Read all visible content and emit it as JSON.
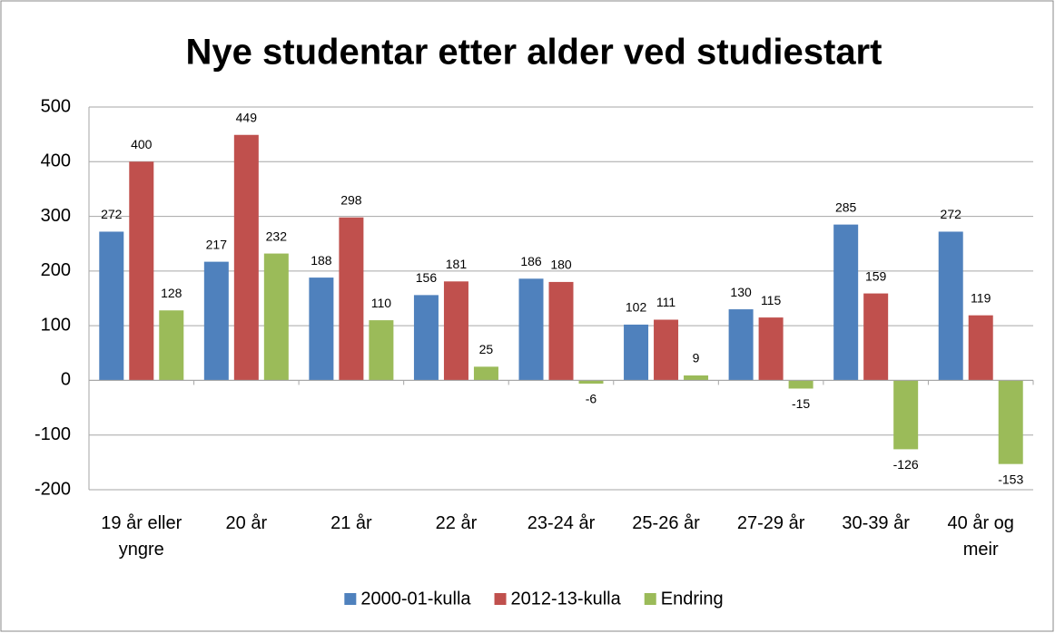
{
  "chart_data": {
    "type": "bar",
    "title": "Nye studentar etter alder ved studiestart",
    "categories": [
      "19 år eller yngre",
      "20 år",
      "21 år",
      "22 år",
      "23-24 år",
      "25-26 år",
      "27-29 år",
      "30-39 år",
      "40 år og meir"
    ],
    "series": [
      {
        "name": "2000-01-kulla",
        "color": "#4f81bd",
        "values": [
          272,
          217,
          188,
          156,
          186,
          102,
          130,
          285,
          272
        ]
      },
      {
        "name": "2012-13-kulla",
        "color": "#c0504d",
        "values": [
          400,
          449,
          298,
          181,
          180,
          111,
          115,
          159,
          119
        ]
      },
      {
        "name": "Endring",
        "color": "#9bbb59",
        "values": [
          128,
          232,
          110,
          25,
          -6,
          9,
          -15,
          -126,
          -153
        ]
      }
    ],
    "ylim": [
      -200,
      500
    ],
    "yticks": [
      -200,
      -100,
      0,
      100,
      200,
      300,
      400,
      500
    ],
    "grid": true,
    "legend": "bottom"
  }
}
